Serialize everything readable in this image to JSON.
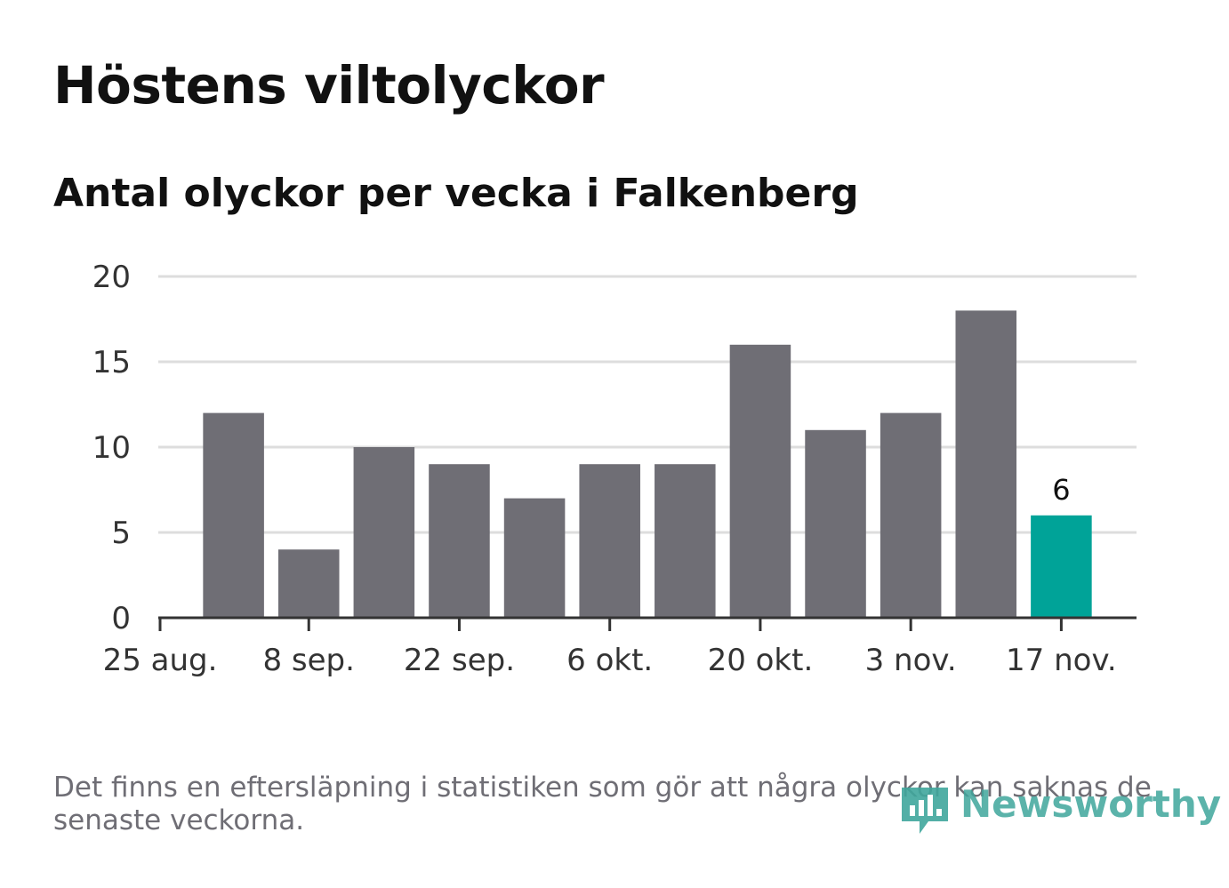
{
  "title": "Höstens viltolyckor",
  "subtitle": "Antal olyckor per vecka i Falkenberg",
  "footnote": "Det finns en eftersläpning i statistiken som gör att några olyckor kan saknas de senaste veckorna.",
  "brand": {
    "name": "Newsworthy"
  },
  "colors": {
    "bar": "#6f6e75",
    "highlight": "#00a398",
    "grid": "#dddddd",
    "axis": "#333333",
    "text": "#111111",
    "brand": "#3fa69c"
  },
  "chart_data": {
    "type": "bar",
    "title": "Höstens viltolyckor",
    "subtitle": "Antal olyckor per vecka i Falkenberg",
    "xlabel": "",
    "ylabel": "",
    "ylim": [
      0,
      20
    ],
    "yticks": [
      0,
      5,
      10,
      15,
      20
    ],
    "grid": true,
    "x_tick_labels": [
      "25 aug.",
      "8 sep.",
      "22 sep.",
      "6 okt.",
      "20 okt.",
      "3 nov.",
      "17 nov."
    ],
    "values": [
      12,
      4,
      10,
      9,
      7,
      9,
      9,
      16,
      11,
      12,
      18,
      6
    ],
    "highlight_last": true,
    "data_labels": [
      {
        "index": 11,
        "text": "6"
      }
    ]
  }
}
